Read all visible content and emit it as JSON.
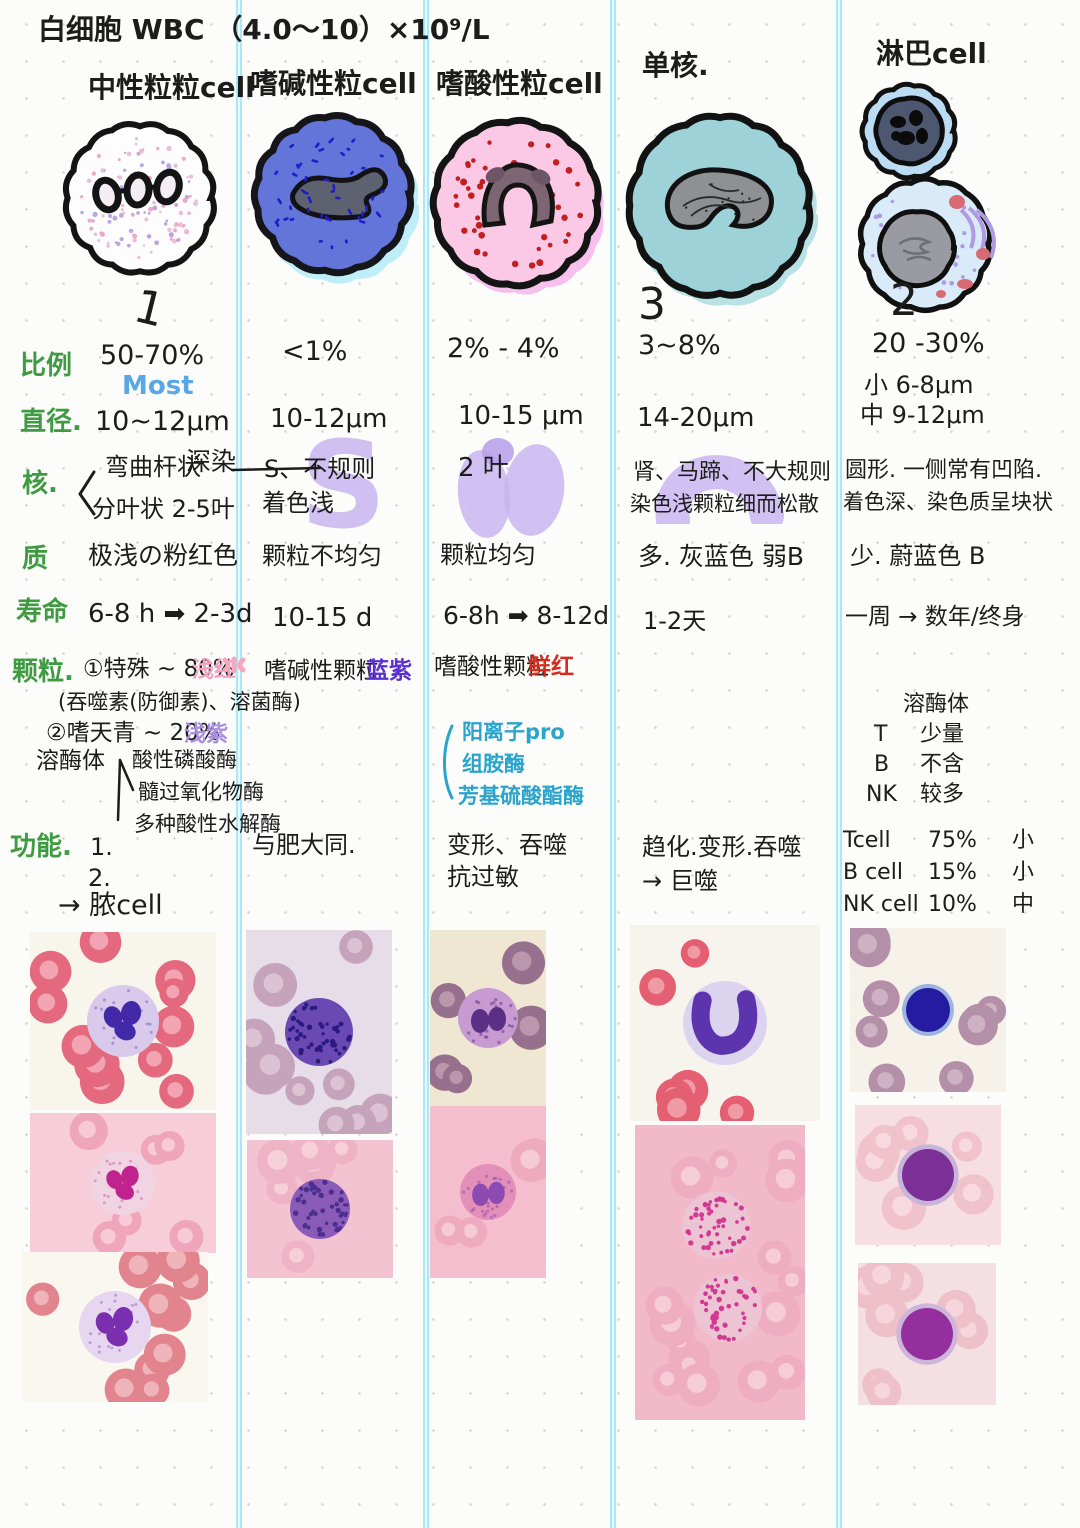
{
  "title": "白细胞 WBC （4.0～10）×10⁹/L",
  "row_labels": {
    "ratio": "比例",
    "diameter": "直径.",
    "nucleus": "核.",
    "cytoplasm": "质",
    "lifespan": "寿命",
    "granules": "颗粒.",
    "function": "功能."
  },
  "columns": [
    {
      "header": "中性粒粒cell",
      "rank": "1",
      "ratio": "50-70%",
      "ratio_note": "Most",
      "diameter": "10~12μm",
      "nucleus_line1": "弯曲杆状",
      "nucleus_line2": "分叶状 2-5叶",
      "nucleus_note": "深染",
      "cytoplasm": "极浅の粉红色",
      "lifespan": "6-8 h ➡ 2-3d",
      "granule1": "①特殊 ~ 80%",
      "granule1_tag": "浅红",
      "granule2": "(吞噬素(防御素)、溶菌酶)",
      "granule3": "②嗜天青 ~ 20%",
      "granule3_tag": "浅紫",
      "granule4": "溶酶体",
      "enzymes": [
        "酸性磷酸酶",
        "髓过氧化物酶",
        "多种酸性水解酶"
      ],
      "function": [
        "1.",
        "2.",
        "→ 脓cell"
      ]
    },
    {
      "header": "嗜碱性粒cell",
      "ratio": "<1%",
      "diameter": "10-12μm",
      "nucleus_line1": "S、不规则",
      "nucleus_line2": "着色浅",
      "nucleus_highlight": "S",
      "cytoplasm": "颗粒不均匀",
      "lifespan": "10-15 d",
      "granules": "嗜碱性颗粒",
      "granules_tag": "蓝紫",
      "function": "与肥大同."
    },
    {
      "header": "嗜酸性粒cell",
      "ratio": "2% - 4%",
      "diameter": "10-15 μm",
      "nucleus": "2 叶",
      "cytoplasm": "颗粒均匀",
      "lifespan": "6-8h ➡ 8-12d",
      "granules": "嗜酸性颗粒",
      "granules_tag": "鲜红",
      "enzyme_list": [
        "阳离子pro",
        "组胺酶",
        "芳基硫酸酯酶"
      ],
      "function": [
        "变形、吞噬",
        "抗过敏"
      ]
    },
    {
      "header": "单核.",
      "rank": "3",
      "ratio": "3~8%",
      "diameter": "14-20μm",
      "nucleus_line1": "肾、马蹄、不大规则",
      "nucleus_line2": "染色浅颗粒细而松散",
      "cytoplasm": "多. 灰蓝色  弱B",
      "lifespan": "1-2天",
      "function": [
        "趋化.变形.吞噬",
        "→ 巨噬"
      ]
    },
    {
      "header": "淋巴cell",
      "rank": "2",
      "ratio": "20 -30%",
      "diameter_small": "小  6-8μm",
      "diameter_mid": "中  9-12μm",
      "nucleus_line1": "圆形. 一侧常有凹陷.",
      "nucleus_line2": "着色深、染色质呈块状",
      "cytoplasm": "少. 蔚蓝色  B",
      "lifespan": "一周 → 数年/终身",
      "granules_title": "溶酶体",
      "granules_rows": [
        [
          "T",
          "少量"
        ],
        [
          "B",
          "不含"
        ],
        [
          "NK",
          "较多"
        ]
      ],
      "function_rows": [
        [
          "Tcell",
          "75%",
          "小"
        ],
        [
          "B cell",
          "15%",
          "小"
        ],
        [
          "NK cell",
          "10%",
          "中"
        ]
      ]
    }
  ],
  "colors": {
    "label_green": "#3f9b42",
    "note_blue": "#58a8e8",
    "tag_pink": "#f2a2c0",
    "tag_lavender": "#a98fe0",
    "tag_violet": "#5b2fd4",
    "tag_red": "#d62c1e",
    "enzyme_cyan": "#2ba4cc",
    "divider_cyan": "#a9e9f6",
    "highlight_lavender": "#c9b5f0"
  }
}
